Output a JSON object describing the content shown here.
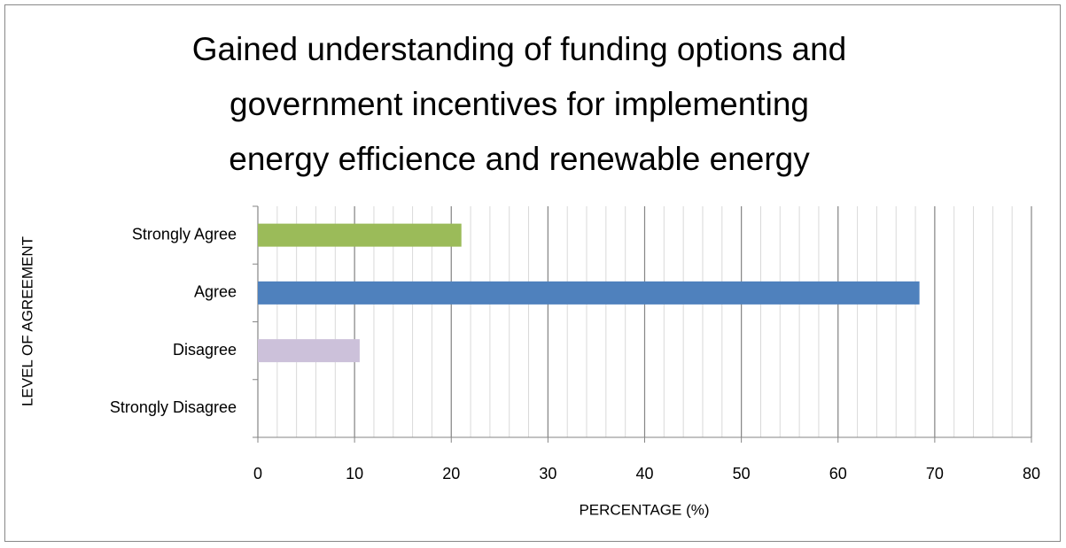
{
  "chart_data": {
    "type": "barh",
    "title": [
      "Gained understanding of funding options and",
      "government incentives  for implementing",
      "energy efficience and renewable energy"
    ],
    "xlabel": "PERCENTAGE (%)",
    "ylabel": "LEVEL OF AGREEMENT",
    "categories": [
      "Strongly Agree",
      "Agree",
      "Disagree",
      "Strongly Disagree"
    ],
    "values": [
      21.05,
      68.42,
      10.53,
      0
    ],
    "colors": [
      "#9bbb59",
      "#4f81bd",
      "#ccc1da",
      "#c0504d"
    ],
    "xlim": [
      0,
      80
    ],
    "xticks": [
      0,
      10,
      20,
      30,
      40,
      50,
      60,
      70,
      80
    ],
    "xminor_step": 2,
    "grid": true
  }
}
